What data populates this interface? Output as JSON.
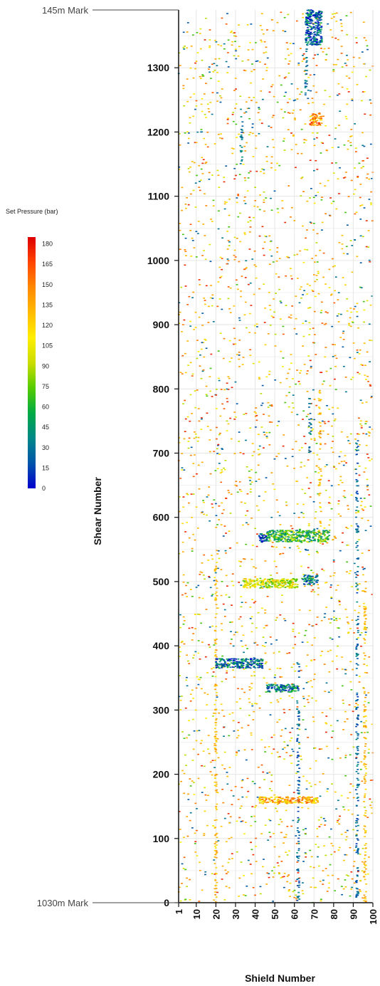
{
  "chart_data": {
    "type": "heatmap",
    "xlabel": "Shield Number",
    "ylabel": "Shear Number",
    "xlim": [
      1,
      100
    ],
    "ylim": [
      0,
      1390
    ],
    "x_ticks": [
      1,
      10,
      20,
      30,
      40,
      50,
      60,
      70,
      80,
      90,
      100
    ],
    "y_ticks": [
      0,
      100,
      200,
      300,
      400,
      500,
      600,
      700,
      800,
      900,
      1000,
      1100,
      1200,
      1300
    ],
    "grid": true,
    "markers": [
      {
        "label": "145m Mark",
        "shear": 1385
      },
      {
        "label": "1030m Mark",
        "shear": 0
      }
    ],
    "colorbar": {
      "title": "Set Pressure (bar)",
      "ticks": [
        180,
        165,
        150,
        135,
        120,
        105,
        90,
        75,
        60,
        45,
        30,
        15,
        0
      ],
      "min": 0,
      "max": 185,
      "placement": "left",
      "colors": [
        "#0000cc",
        "#0055aa",
        "#008888",
        "#00aa44",
        "#55cc00",
        "#ccdd00",
        "#ffee00",
        "#ffbb00",
        "#ff8800",
        "#ff4400",
        "#dd0000"
      ]
    },
    "clusters": [
      {
        "x": [
          42,
          46
        ],
        "y": [
          560,
          575
        ],
        "value": 20
      },
      {
        "x": [
          46,
          78
        ],
        "y": [
          562,
          580
        ],
        "value": 60
      },
      {
        "x": [
          34,
          62
        ],
        "y": [
          490,
          505
        ],
        "value": 100
      },
      {
        "x": [
          64,
          72
        ],
        "y": [
          495,
          510
        ],
        "value": 40
      },
      {
        "x": [
          20,
          44
        ],
        "y": [
          365,
          380
        ],
        "value": 30
      },
      {
        "x": [
          46,
          62
        ],
        "y": [
          328,
          340
        ],
        "value": 35
      },
      {
        "x": [
          42,
          72
        ],
        "y": [
          155,
          165
        ],
        "value": 130
      },
      {
        "x": [
          66,
          74
        ],
        "y": [
          1335,
          1390
        ],
        "value": 25
      },
      {
        "x": [
          68,
          74
        ],
        "y": [
          1210,
          1230
        ],
        "value": 140
      }
    ],
    "vertical_bands": [
      {
        "x": 20,
        "y": [
          0,
          530
        ],
        "value": 130
      },
      {
        "x": 73,
        "y": [
          560,
          800
        ],
        "value": 130
      },
      {
        "x": 68,
        "y": [
          700,
          790
        ],
        "value": 30
      },
      {
        "x": 92,
        "y": [
          0,
          720
        ],
        "value": 25
      },
      {
        "x": 62,
        "y": [
          0,
          380
        ],
        "value": 25
      },
      {
        "x": 96,
        "y": [
          0,
          500
        ],
        "value": 130
      },
      {
        "x": 66,
        "y": [
          1250,
          1380
        ],
        "value": 30
      },
      {
        "x": 33,
        "y": [
          1150,
          1240
        ],
        "value": 30
      }
    ]
  }
}
